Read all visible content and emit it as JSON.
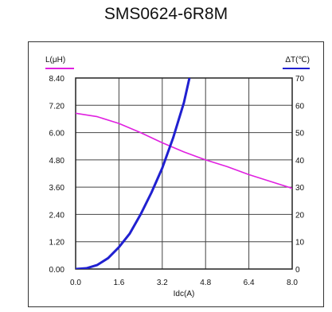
{
  "title": "SMS0624-6R8M",
  "chart_data": {
    "type": "line",
    "title": "SMS0624-6R8M",
    "xlabel": "Idc(A)",
    "ylabel_left": "L(μH)",
    "ylabel_right": "ΔT(℃)",
    "xlim": [
      0,
      8
    ],
    "ylim_left": [
      0,
      8.4
    ],
    "ylim_right": [
      0,
      70
    ],
    "x_ticks": [
      "0.0",
      "1.6",
      "3.2",
      "4.8",
      "6.4",
      "8.0"
    ],
    "y_left_ticks": [
      "0.00",
      "1.20",
      "2.40",
      "3.60",
      "4.80",
      "6.00",
      "7.20",
      "8.40"
    ],
    "y_right_ticks": [
      "0",
      "10",
      "20",
      "30",
      "40",
      "50",
      "60",
      "70"
    ],
    "grid": true,
    "series": [
      {
        "name": "L(μH)",
        "axis": "left",
        "color": "#e020e0",
        "x": [
          0,
          0.8,
          1.6,
          2.4,
          3.2,
          4.0,
          4.8,
          5.6,
          6.4,
          7.2,
          8.0
        ],
        "y": [
          6.85,
          6.7,
          6.4,
          6.0,
          5.55,
          5.15,
          4.8,
          4.5,
          4.15,
          3.85,
          3.55
        ]
      },
      {
        "name": "ΔT(℃)",
        "axis": "right",
        "color": "#2020d0",
        "x": [
          0,
          0.4,
          0.8,
          1.2,
          1.6,
          2.0,
          2.4,
          2.8,
          3.2,
          3.6,
          4.0,
          4.25
        ],
        "y": [
          0,
          0.3,
          1.5,
          4,
          8,
          13,
          20,
          28,
          37,
          48,
          61,
          72
        ]
      }
    ]
  }
}
